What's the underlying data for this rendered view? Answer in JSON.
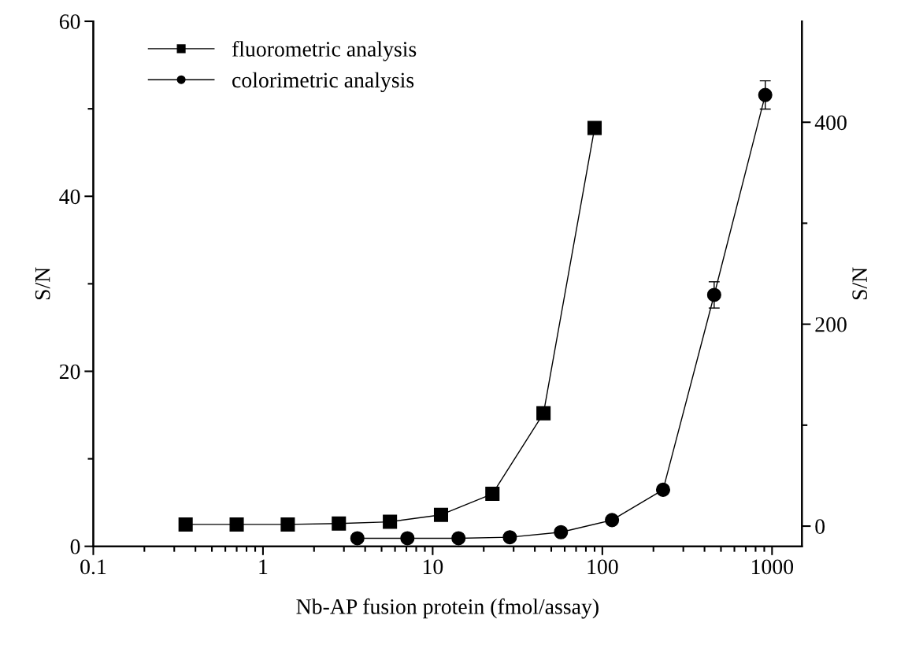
{
  "chart_data": {
    "type": "line",
    "xlabel": "Nb-AP fusion protein (fmol/assay)",
    "ylabel": "S/N",
    "y2label": "S/N",
    "log": "x",
    "xlim": [
      0.1,
      1500
    ],
    "xticks": [
      0.1,
      1,
      10,
      100,
      1000,
      {
        "value": 0.2,
        "label": null
      },
      {
        "value": 0.3,
        "label": null
      },
      {
        "value": 0.4,
        "label": null
      },
      {
        "value": 0.5,
        "label": null
      },
      {
        "value": 0.6,
        "label": null
      },
      {
        "value": 0.7,
        "label": null
      },
      {
        "value": 0.8,
        "label": null
      },
      {
        "value": 0.9,
        "label": null
      },
      {
        "value": 2,
        "label": null
      },
      {
        "value": 3,
        "label": null
      },
      {
        "value": 4,
        "label": null
      },
      {
        "value": 5,
        "label": null
      },
      {
        "value": 6,
        "label": null
      },
      {
        "value": 7,
        "label": null
      },
      {
        "value": 8,
        "label": null
      },
      {
        "value": 9,
        "label": null
      },
      {
        "value": 20,
        "label": null
      },
      {
        "value": 30,
        "label": null
      },
      {
        "value": 40,
        "label": null
      },
      {
        "value": 50,
        "label": null
      },
      {
        "value": 60,
        "label": null
      },
      {
        "value": 70,
        "label": null
      },
      {
        "value": 80,
        "label": null
      },
      {
        "value": 90,
        "label": null
      },
      {
        "value": 200,
        "label": null
      },
      {
        "value": 300,
        "label": null
      },
      {
        "value": 400,
        "label": null
      },
      {
        "value": 500,
        "label": null
      },
      {
        "value": 600,
        "label": null
      },
      {
        "value": 700,
        "label": null
      },
      {
        "value": 800,
        "label": null
      },
      {
        "value": 900,
        "label": null
      }
    ],
    "ylim": [
      0,
      60
    ],
    "yticks": [
      0,
      20,
      40,
      60,
      {
        "value": 10,
        "label": null
      },
      {
        "value": 30,
        "label": null
      },
      {
        "value": 50,
        "label": null
      }
    ],
    "y2lim": [
      -20,
      500
    ],
    "y2ticks": [
      0,
      200,
      400,
      {
        "value": 100,
        "label": null
      },
      {
        "value": 300,
        "label": null
      }
    ],
    "legend": "top left",
    "grid": false,
    "line_style": "solid",
    "series": [
      {
        "name": "fluorometric analysis",
        "color": "#000000",
        "marker": "square",
        "x": [
          0.35,
          0.7,
          1.4,
          2.8,
          5.6,
          11.2,
          22.5,
          45,
          90
        ],
        "values": [
          2.5,
          2.5,
          2.5,
          2.6,
          2.8,
          3.6,
          6,
          15.2,
          47.8
        ]
      },
      {
        "name": "colorimetric analysis",
        "color": "#000000",
        "marker": "circle",
        "axis": "y2",
        "x": [
          3.6,
          7.1,
          14.2,
          28.5,
          57,
          114,
          228,
          456,
          912
        ],
        "values": [
          -12,
          -12,
          -12,
          -11,
          -6,
          6,
          36,
          229,
          427
        ],
        "errors": [
          null,
          null,
          null,
          null,
          null,
          null,
          null,
          13,
          14
        ]
      }
    ]
  }
}
